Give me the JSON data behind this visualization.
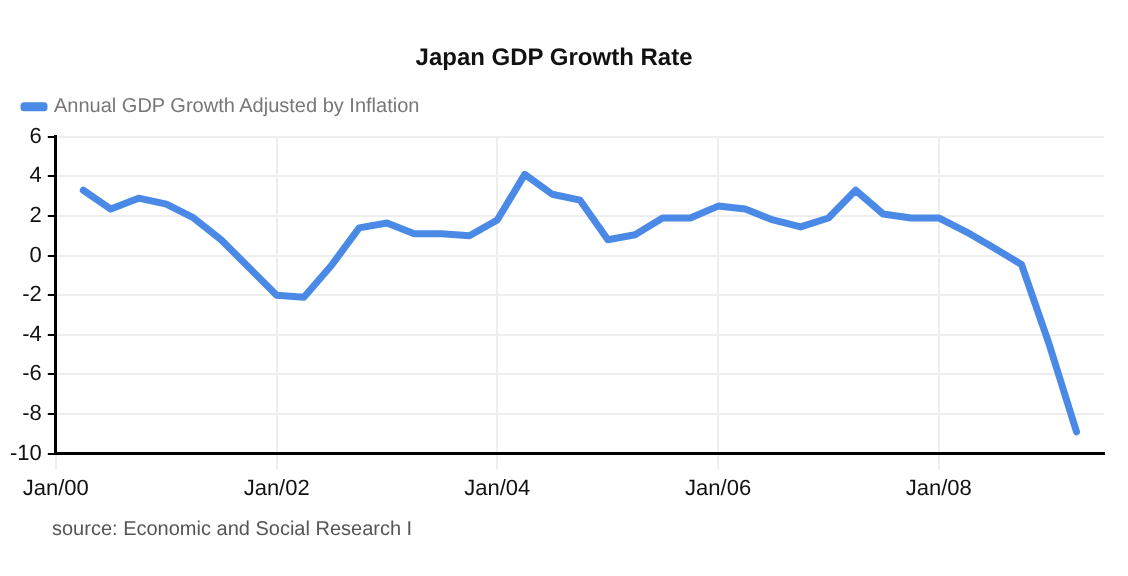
{
  "chart_data": {
    "type": "line",
    "title": "Japan GDP Growth Rate",
    "x": [
      "2000-04",
      "2000-07",
      "2000-10",
      "2001-01",
      "2001-04",
      "2001-07",
      "2001-10",
      "2002-01",
      "2002-04",
      "2002-07",
      "2002-10",
      "2003-01",
      "2003-04",
      "2003-07",
      "2003-10",
      "2004-01",
      "2004-04",
      "2004-07",
      "2004-10",
      "2005-01",
      "2005-04",
      "2005-07",
      "2005-10",
      "2006-01",
      "2006-04",
      "2006-07",
      "2006-10",
      "2007-01",
      "2007-04",
      "2007-07",
      "2007-10",
      "2008-01",
      "2008-04",
      "2008-07",
      "2008-10",
      "2009-01",
      "2009-04"
    ],
    "series": [
      {
        "name": "Annual GDP Growth Adjusted by Inflation",
        "color": "#4a8ae6",
        "values": [
          3.3,
          2.35,
          2.9,
          2.6,
          1.9,
          0.8,
          -0.6,
          -2.0,
          -2.1,
          -0.5,
          1.4,
          1.65,
          1.1,
          1.1,
          1.0,
          1.8,
          4.1,
          3.1,
          2.8,
          0.8,
          1.05,
          1.9,
          1.9,
          2.5,
          2.35,
          1.8,
          1.45,
          1.9,
          3.3,
          2.1,
          1.9,
          1.9,
          1.2,
          0.4,
          -0.45,
          -4.5,
          -8.9
        ]
      }
    ],
    "xlim": [
      "2000-01",
      "2009-07"
    ],
    "xticks": [
      {
        "value": "2000-01",
        "label": "Jan/00"
      },
      {
        "value": "2002-01",
        "label": "Jan/02"
      },
      {
        "value": "2004-01",
        "label": "Jan/04"
      },
      {
        "value": "2006-01",
        "label": "Jan/06"
      },
      {
        "value": "2008-01",
        "label": "Jan/08"
      }
    ],
    "ylim": [
      -10,
      6
    ],
    "yticks": [
      -10,
      -8,
      -6,
      -4,
      -2,
      0,
      2,
      4,
      6
    ],
    "grid": true,
    "legend": "top left",
    "marker": "none",
    "line_style": "solid",
    "annotations": [
      "source: Economic and Social Research I"
    ]
  }
}
